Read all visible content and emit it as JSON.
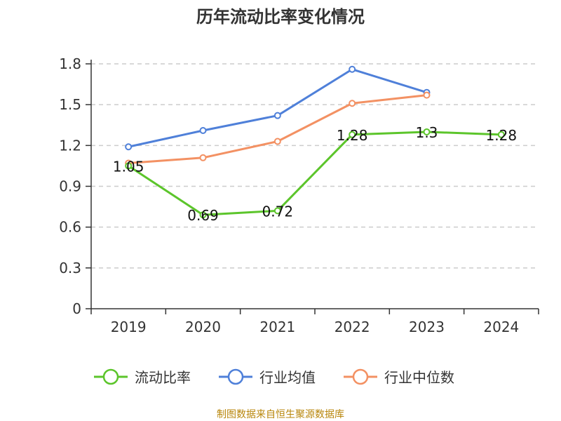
{
  "chart_data": {
    "type": "line",
    "title": "历年流动比率变化情况",
    "categories": [
      "2019",
      "2020",
      "2021",
      "2022",
      "2023",
      "2024"
    ],
    "ylim": [
      0,
      1.8
    ],
    "yticks": [
      "0",
      "0.3",
      "0.6",
      "0.9",
      "1.2",
      "1.5",
      "1.8"
    ],
    "grid": true,
    "legend_position": "bottom",
    "series": [
      {
        "name": "流动比率",
        "color": "#5cc52b",
        "values": [
          1.05,
          0.69,
          0.72,
          1.28,
          1.3,
          1.28
        ],
        "labels": [
          "1.05",
          "0.69",
          "0.72",
          "1.28",
          "1.3",
          "1.28"
        ]
      },
      {
        "name": "行业均值",
        "color": "#4f80d9",
        "values": [
          1.19,
          1.31,
          1.42,
          1.76,
          1.59,
          null
        ]
      },
      {
        "name": "行业中位数",
        "color": "#f39163",
        "values": [
          1.07,
          1.11,
          1.23,
          1.51,
          1.57,
          null
        ]
      }
    ]
  },
  "source": "制图数据来自恒生聚源数据库"
}
